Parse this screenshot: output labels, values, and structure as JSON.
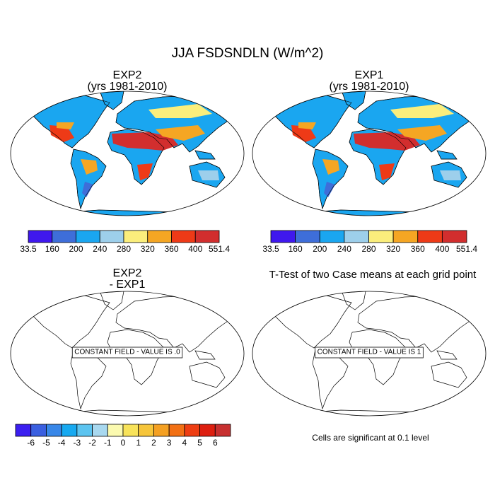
{
  "title": "JJA FSDSNDLN (W/m^2)",
  "panels": [
    {
      "title": "EXP2",
      "subtitle": "(yrs 1981-2010)"
    },
    {
      "title": "EXP1",
      "subtitle": "(yrs 1981-2010)"
    },
    {
      "title": "EXP2",
      "subtitle": "- EXP1",
      "annotation": "CONSTANT FIELD - VALUE IS .0"
    },
    {
      "title": "T-Test of two Case means at each grid point",
      "annotation": "CONSTANT FIELD - VALUE IS 1"
    }
  ],
  "colorbars": [
    {
      "labels": [
        33.5,
        160,
        200,
        240,
        280,
        320,
        360,
        400,
        551.4
      ],
      "colors": [
        "#3f18ee",
        "#3e6ed9",
        "#1aa6f0",
        "#9dcfeb",
        "#fbee7c",
        "#f5a623",
        "#ee3a17",
        "#d22e2e"
      ]
    },
    {
      "labels": [
        33.5,
        160,
        200,
        240,
        280,
        320,
        360,
        400,
        551.4
      ],
      "colors": [
        "#3f18ee",
        "#3e6ed9",
        "#1aa6f0",
        "#9dcfeb",
        "#fbee7c",
        "#f5a623",
        "#ee3a17",
        "#d22e2e"
      ]
    },
    {
      "labels": [
        -6,
        -5,
        -4,
        -3,
        -2,
        -1,
        0,
        1,
        2,
        3,
        4,
        5,
        6
      ],
      "colors": [
        "#3b1ff0",
        "#3a5fe0",
        "#3887e8",
        "#17a9f0",
        "#5cc4f0",
        "#a8d8ef",
        "#fbfab0",
        "#f8e35a",
        "#f6c53a",
        "#f4a022",
        "#f27014",
        "#ee3e12",
        "#dd1f10",
        "#c73030"
      ]
    }
  ],
  "note": "Cells are significant at 0.1 level"
}
